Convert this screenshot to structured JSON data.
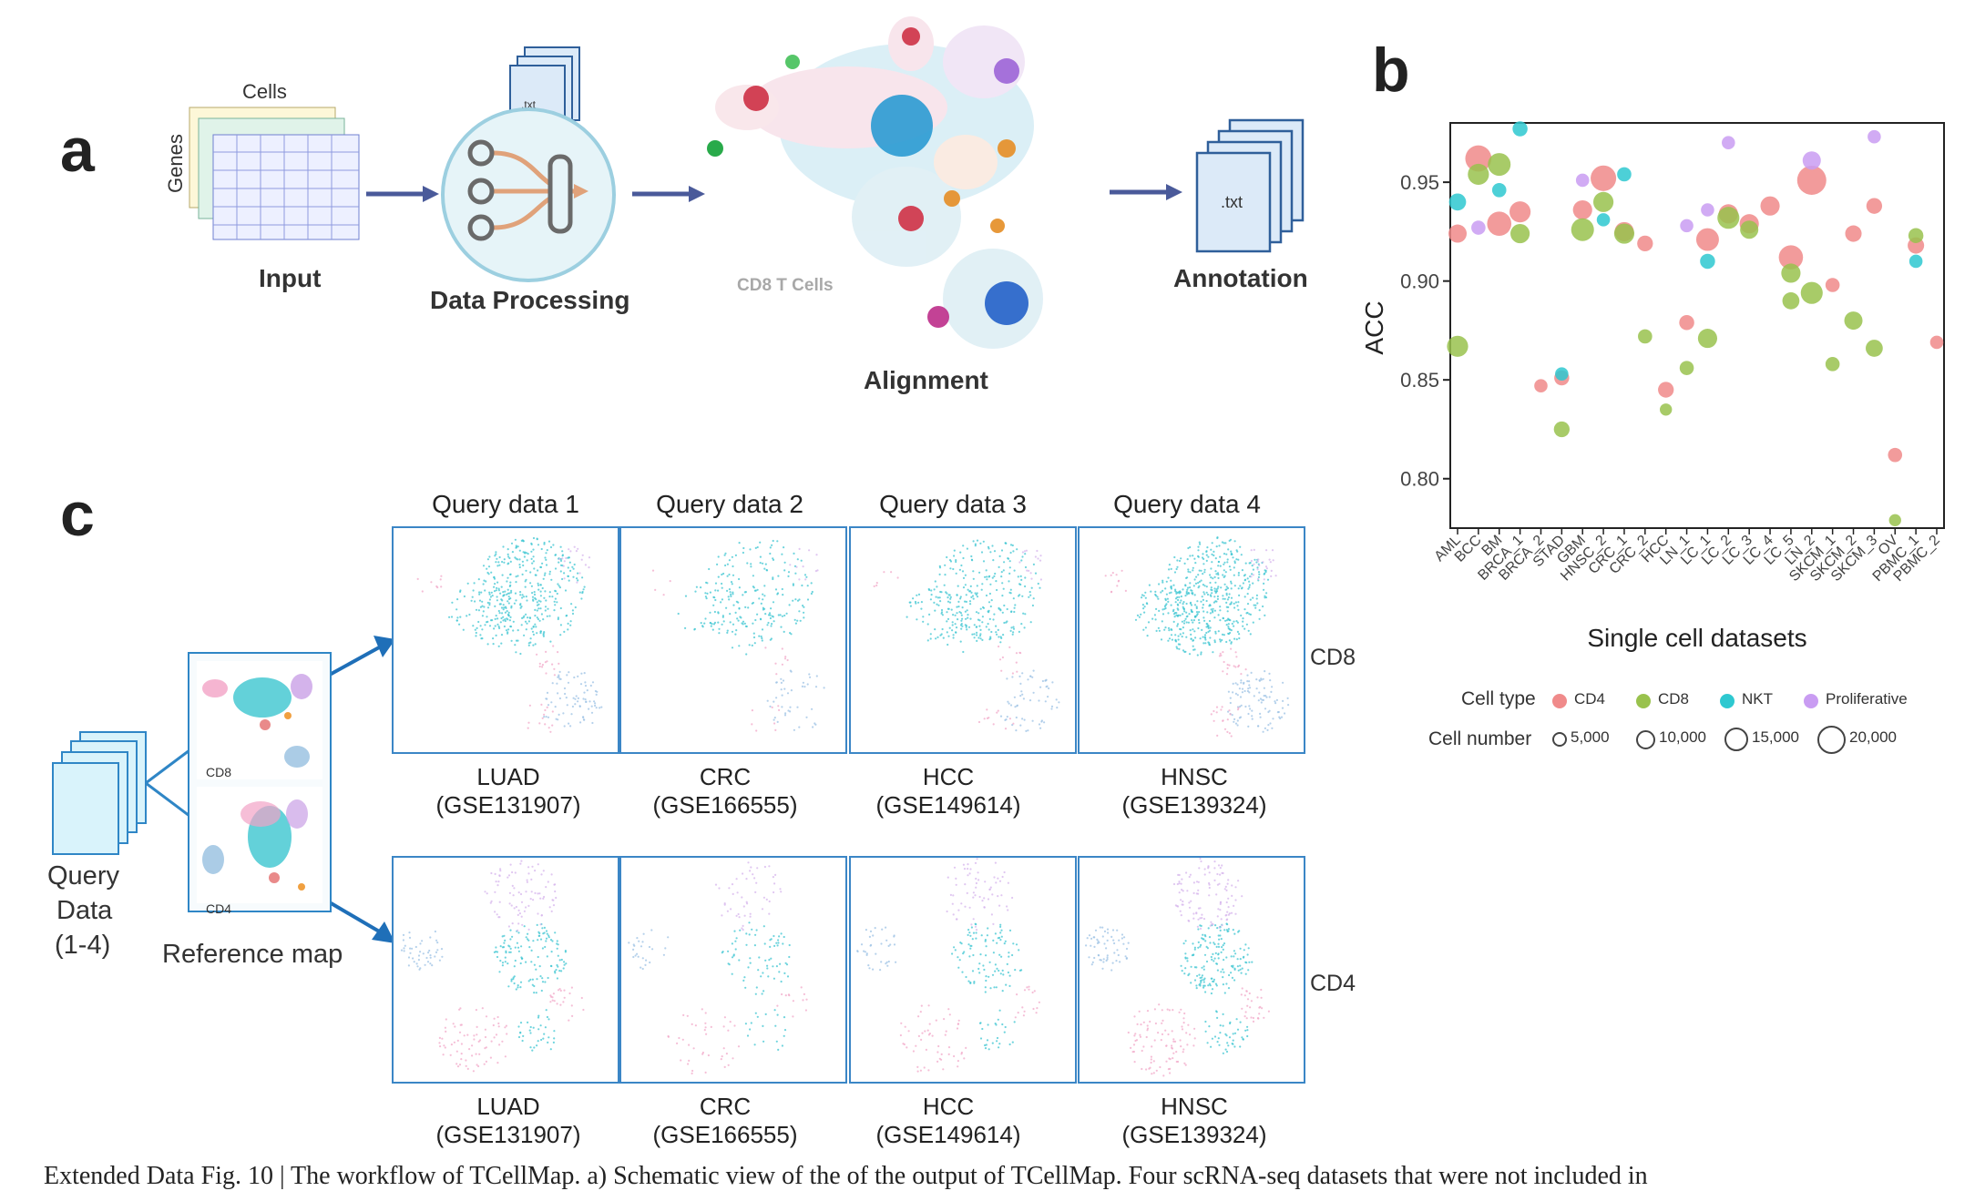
{
  "panel_a": {
    "letter": "a",
    "input_label": "Input",
    "cells_label": "Cells",
    "genes_label": "Genes",
    "processing_label": "Data Processing",
    "file_label": ".txt",
    "umap_label": "CD8 T Cells",
    "alignment_label": "Alignment",
    "annotation_label": "Annotation",
    "annotation_file_label": ".txt"
  },
  "panel_b": {
    "letter": "b"
  },
  "panel_c": {
    "letter": "c",
    "query_titles": [
      "Query data 1",
      "Query data 2",
      "Query data 3",
      "Query data 4"
    ],
    "datasets": [
      {
        "name": "LUAD",
        "accession": "(GSE131907)"
      },
      {
        "name": "CRC",
        "accession": "(GSE166555)"
      },
      {
        "name": "HCC",
        "accession": "(GSE149614)"
      },
      {
        "name": "HNSC",
        "accession": "(GSE139324)"
      }
    ],
    "row_labels": [
      "CD8",
      "CD4"
    ],
    "ref_labels": [
      "CD8",
      "CD4"
    ],
    "query_data_label": [
      "Query",
      "Data",
      "(1-4)"
    ],
    "reference_map_label": "Reference map"
  },
  "caption": "Extended Data Fig. 10 | The workflow of TCellMap. a) Schematic view of the                of the output of TCellMap. Four scRNA-seq datasets that were not included in",
  "chart_data": {
    "type": "scatter",
    "title": "",
    "xlabel": "Single cell datasets",
    "ylabel": "ACC",
    "ylim": [
      0.775,
      0.98
    ],
    "yticks": [
      0.8,
      0.85,
      0.9,
      0.95
    ],
    "categories": [
      "AML",
      "BCC",
      "BM",
      "BRCA_1",
      "BRCA_2",
      "STAD",
      "GBM",
      "HNSC_2",
      "CRC_1",
      "CRC_2",
      "HCC",
      "LN_1",
      "LC_1",
      "LC_2",
      "LC_3",
      "LC_4",
      "LC_5",
      "LN_2",
      "SKCM_1",
      "SKCM_2",
      "SKCM_3",
      "OV",
      "PBMC_1",
      "PBMC_2"
    ],
    "legend": {
      "celltype_title": "Cell type",
      "celltypes": [
        {
          "name": "CD4",
          "color": "#f08a8a"
        },
        {
          "name": "CD8",
          "color": "#99c24d"
        },
        {
          "name": "NKT",
          "color": "#2ec8d0"
        },
        {
          "name": "Proliferative",
          "color": "#c99cf2"
        }
      ],
      "size_title": "Cell number",
      "sizes": [
        "5,000",
        "10,000",
        "15,000",
        "20,000"
      ]
    },
    "series": [
      {
        "name": "CD4",
        "color": "#f08a8a",
        "points": [
          {
            "x": "AML",
            "y": 0.924,
            "n": 5000
          },
          {
            "x": "BCC",
            "y": 0.962,
            "n": 15000
          },
          {
            "x": "BM",
            "y": 0.929,
            "n": 12000
          },
          {
            "x": "BRCA_1",
            "y": 0.935,
            "n": 8000
          },
          {
            "x": "BRCA_2",
            "y": 0.847,
            "n": 1500
          },
          {
            "x": "STAD",
            "y": 0.851,
            "n": 2500
          },
          {
            "x": "GBM",
            "y": 0.936,
            "n": 6000
          },
          {
            "x": "HNSC_2",
            "y": 0.952,
            "n": 14000
          },
          {
            "x": "CRC_1",
            "y": 0.925,
            "n": 6000
          },
          {
            "x": "CRC_2",
            "y": 0.919,
            "n": 3000
          },
          {
            "x": "HCC",
            "y": 0.845,
            "n": 3000
          },
          {
            "x": "LN_1",
            "y": 0.879,
            "n": 2500
          },
          {
            "x": "LC_1",
            "y": 0.921,
            "n": 10000
          },
          {
            "x": "LC_2",
            "y": 0.934,
            "n": 6000
          },
          {
            "x": "LC_3",
            "y": 0.929,
            "n": 6000
          },
          {
            "x": "LC_4",
            "y": 0.938,
            "n": 6000
          },
          {
            "x": "LC_5",
            "y": 0.912,
            "n": 12000
          },
          {
            "x": "LN_2",
            "y": 0.951,
            "n": 20000
          },
          {
            "x": "SKCM_1",
            "y": 0.898,
            "n": 2000
          },
          {
            "x": "SKCM_2",
            "y": 0.924,
            "n": 3500
          },
          {
            "x": "SKCM_3",
            "y": 0.938,
            "n": 3000
          },
          {
            "x": "OV",
            "y": 0.812,
            "n": 2000
          },
          {
            "x": "PBMC_1",
            "y": 0.918,
            "n": 3500
          },
          {
            "x": "PBMC_2",
            "y": 0.869,
            "n": 1500
          }
        ]
      },
      {
        "name": "CD8",
        "color": "#99c24d",
        "points": [
          {
            "x": "AML",
            "y": 0.867,
            "n": 8000
          },
          {
            "x": "BCC",
            "y": 0.954,
            "n": 8000
          },
          {
            "x": "BM",
            "y": 0.959,
            "n": 10000
          },
          {
            "x": "BRCA_1",
            "y": 0.924,
            "n": 6000
          },
          {
            "x": "STAD",
            "y": 0.825,
            "n": 3000
          },
          {
            "x": "GBM",
            "y": 0.926,
            "n": 10000
          },
          {
            "x": "HNSC_2",
            "y": 0.94,
            "n": 7000
          },
          {
            "x": "CRC_1",
            "y": 0.924,
            "n": 7000
          },
          {
            "x": "CRC_2",
            "y": 0.872,
            "n": 2000
          },
          {
            "x": "HCC",
            "y": 0.835,
            "n": 1000
          },
          {
            "x": "LN_1",
            "y": 0.856,
            "n": 2000
          },
          {
            "x": "LC_1",
            "y": 0.871,
            "n": 6000
          },
          {
            "x": "LC_2",
            "y": 0.932,
            "n": 9000
          },
          {
            "x": "LC_3",
            "y": 0.926,
            "n": 5000
          },
          {
            "x": "LC_5",
            "y": 0.89,
            "n": 4000
          },
          {
            "x": "LC_5",
            "y": 0.904,
            "n": 6000
          },
          {
            "x": "LN_2",
            "y": 0.894,
            "n": 9000
          },
          {
            "x": "SKCM_1",
            "y": 0.858,
            "n": 2000
          },
          {
            "x": "SKCM_2",
            "y": 0.88,
            "n": 5000
          },
          {
            "x": "SKCM_3",
            "y": 0.866,
            "n": 4000
          },
          {
            "x": "OV",
            "y": 0.779,
            "n": 1000
          },
          {
            "x": "PBMC_1",
            "y": 0.923,
            "n": 2500
          }
        ]
      },
      {
        "name": "NKT",
        "color": "#2ec8d0",
        "points": [
          {
            "x": "AML",
            "y": 0.94,
            "n": 4000
          },
          {
            "x": "BM",
            "y": 0.946,
            "n": 2000
          },
          {
            "x": "BRCA_1",
            "y": 0.977,
            "n": 2500
          },
          {
            "x": "STAD",
            "y": 0.853,
            "n": 1500
          },
          {
            "x": "HNSC_2",
            "y": 0.931,
            "n": 1500
          },
          {
            "x": "CRC_1",
            "y": 0.954,
            "n": 2000
          },
          {
            "x": "LC_1",
            "y": 0.91,
            "n": 2500
          },
          {
            "x": "PBMC_1",
            "y": 0.91,
            "n": 1500
          }
        ]
      },
      {
        "name": "Proliferative",
        "color": "#c99cf2",
        "points": [
          {
            "x": "BCC",
            "y": 0.927,
            "n": 2000
          },
          {
            "x": "GBM",
            "y": 0.951,
            "n": 1500
          },
          {
            "x": "LN_1",
            "y": 0.928,
            "n": 1500
          },
          {
            "x": "LC_1",
            "y": 0.936,
            "n": 1500
          },
          {
            "x": "LC_2",
            "y": 0.97,
            "n": 1500
          },
          {
            "x": "LN_2",
            "y": 0.961,
            "n": 5000
          },
          {
            "x": "SKCM_3",
            "y": 0.973,
            "n": 1500
          }
        ]
      }
    ]
  }
}
